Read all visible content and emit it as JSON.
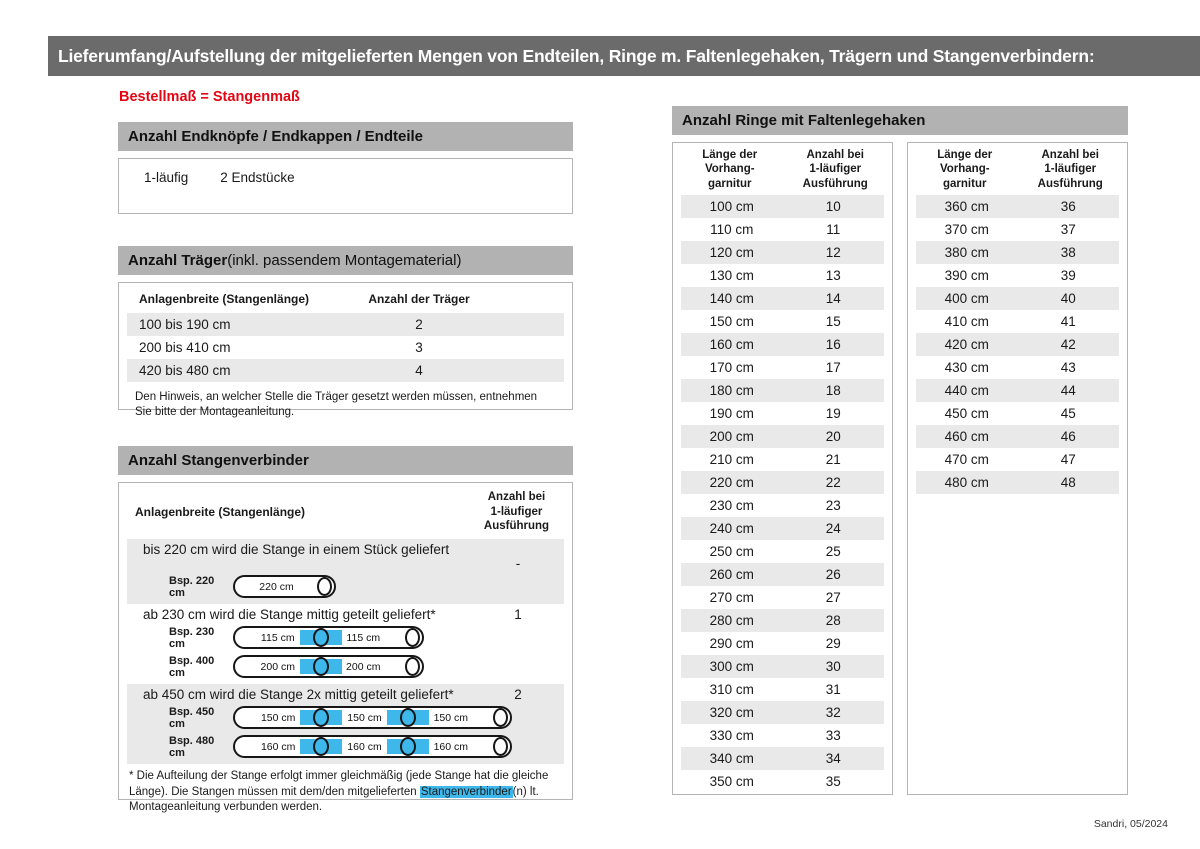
{
  "page": {
    "title": "Lieferumfang/Aufstellung der mitgelieferten Mengen von Endteilen, Ringe m. Faltenlegehaken, Trägern und Stangenverbindern:",
    "red_note": "Bestellmaß = Stangenmaß",
    "footer": "Sandri, 05/2024"
  },
  "colors": {
    "title_bar": "#6b6b6b",
    "section_bar": "#b2b2b2",
    "row_stripe": "#e9e9e9",
    "accent_red": "#e30613",
    "connector_blue": "#3eb7ea"
  },
  "endteile": {
    "header": "Anzahl Endknöpfe / Endkappen / Endteile",
    "row": {
      "label": "1-läufig",
      "value": "2 Endstücke"
    }
  },
  "traeger": {
    "title_bold": "Anzahl Träger",
    "title_rest": " (inkl. passendem Montagematerial)",
    "col1": "Anlagenbreite (Stangenlänge)",
    "col2": "Anzahl der Träger",
    "rows": [
      {
        "range": "100 bis 190 cm",
        "count": "2"
      },
      {
        "range": "200 bis 410 cm",
        "count": "3"
      },
      {
        "range": "420 bis 480 cm",
        "count": "4"
      }
    ],
    "note": "Den Hinweis, an welcher Stelle die Träger gesetzt werden müssen, entnehmen Sie bitte der Montageanleitung."
  },
  "verbinder": {
    "header": "Anzahl Stangenverbinder",
    "col1": "Anlagenbreite (Stangenlänge)",
    "col2": "Anzahl bei\n1-läufiger\nAusführung",
    "rows": [
      {
        "text": "bis 220 cm wird die Stange in einem Stück geliefert",
        "count": "-",
        "examples": [
          {
            "label": "Bsp. 220 cm",
            "segments": [
              "220 cm"
            ]
          }
        ]
      },
      {
        "text": "ab 230 cm wird die Stange mittig geteilt geliefert*",
        "count": "1",
        "examples": [
          {
            "label": "Bsp. 230 cm",
            "segments": [
              "115 cm",
              "115 cm"
            ]
          },
          {
            "label": "Bsp. 400 cm",
            "segments": [
              "200 cm",
              "200 cm"
            ]
          }
        ]
      },
      {
        "text": "ab 450 cm wird die Stange 2x mittig geteilt geliefert*",
        "count": "2",
        "examples": [
          {
            "label": "Bsp. 450 cm",
            "segments": [
              "150 cm",
              "150 cm",
              "150 cm"
            ]
          },
          {
            "label": "Bsp. 480 cm",
            "segments": [
              "160 cm",
              "160 cm",
              "160 cm"
            ]
          }
        ]
      }
    ],
    "footnote_pre": "* Die Aufteilung der Stange erfolgt immer gleichmäßig (jede Stange hat die gleiche Länge). Die Stangen müssen mit dem/den mitgelieferten ",
    "footnote_highlight": "Stangenverbinder",
    "footnote_post": "(n) lt. Montageanleitung verbunden werden."
  },
  "ringe": {
    "header": "Anzahl Ringe mit Faltenlegehaken",
    "col_length": "Länge der\nVorhang-\ngarnitur",
    "col_count": "Anzahl bei\n1-läufiger\nAusführung",
    "table1": [
      {
        "length": "100 cm",
        "count": "10"
      },
      {
        "length": "110 cm",
        "count": "11"
      },
      {
        "length": "120 cm",
        "count": "12"
      },
      {
        "length": "130 cm",
        "count": "13"
      },
      {
        "length": "140 cm",
        "count": "14"
      },
      {
        "length": "150 cm",
        "count": "15"
      },
      {
        "length": "160 cm",
        "count": "16"
      },
      {
        "length": "170 cm",
        "count": "17"
      },
      {
        "length": "180 cm",
        "count": "18"
      },
      {
        "length": "190 cm",
        "count": "19"
      },
      {
        "length": "200 cm",
        "count": "20"
      },
      {
        "length": "210 cm",
        "count": "21"
      },
      {
        "length": "220 cm",
        "count": "22"
      },
      {
        "length": "230 cm",
        "count": "23"
      },
      {
        "length": "240 cm",
        "count": "24"
      },
      {
        "length": "250 cm",
        "count": "25"
      },
      {
        "length": "260 cm",
        "count": "26"
      },
      {
        "length": "270 cm",
        "count": "27"
      },
      {
        "length": "280 cm",
        "count": "28"
      },
      {
        "length": "290 cm",
        "count": "29"
      },
      {
        "length": "300 cm",
        "count": "30"
      },
      {
        "length": "310 cm",
        "count": "31"
      },
      {
        "length": "320 cm",
        "count": "32"
      },
      {
        "length": "330 cm",
        "count": "33"
      },
      {
        "length": "340 cm",
        "count": "34"
      },
      {
        "length": "350 cm",
        "count": "35"
      }
    ],
    "table2": [
      {
        "length": "360 cm",
        "count": "36"
      },
      {
        "length": "370 cm",
        "count": "37"
      },
      {
        "length": "380 cm",
        "count": "38"
      },
      {
        "length": "390 cm",
        "count": "39"
      },
      {
        "length": "400 cm",
        "count": "40"
      },
      {
        "length": "410 cm",
        "count": "41"
      },
      {
        "length": "420 cm",
        "count": "42"
      },
      {
        "length": "430 cm",
        "count": "43"
      },
      {
        "length": "440 cm",
        "count": "44"
      },
      {
        "length": "450 cm",
        "count": "45"
      },
      {
        "length": "460 cm",
        "count": "46"
      },
      {
        "length": "470 cm",
        "count": "47"
      },
      {
        "length": "480 cm",
        "count": "48"
      }
    ]
  }
}
